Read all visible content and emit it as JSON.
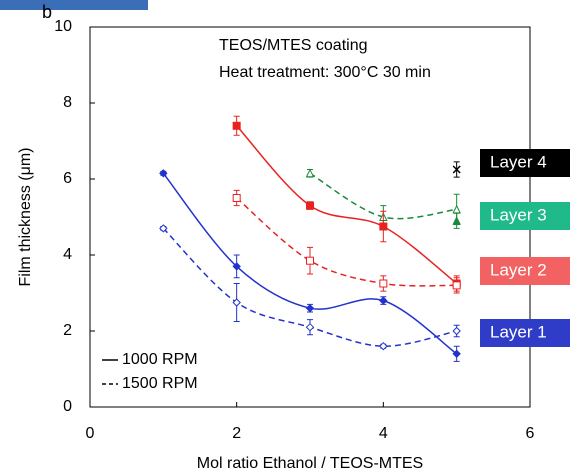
{
  "chart_data": {
    "type": "scatter",
    "panel_label": "b",
    "annotations": [
      "TEOS/MTES coating",
      "Heat treatment: 300°C  30 min"
    ],
    "x_label": "Mol ratio Ethanol / TEOS-MTES",
    "y_label": "Film thickness (μm)",
    "xlim": [
      0,
      6
    ],
    "xticks": [
      0,
      2,
      4,
      6
    ],
    "ylim": [
      0,
      10
    ],
    "yticks": [
      0,
      2,
      4,
      6,
      8,
      10
    ],
    "line_styles": [
      {
        "label": "1000 RPM",
        "dash": false
      },
      {
        "label": "1500 RPM",
        "dash": true
      }
    ],
    "series": [
      {
        "name": "Layer 4",
        "color": "#000000",
        "label_color": "#000000",
        "marker": "x",
        "runs": [
          {
            "dash": false,
            "filled": true,
            "x": [
              5
            ],
            "values": [
              6.25
            ],
            "errors": [
              0.2
            ]
          }
        ]
      },
      {
        "name": "Layer 3",
        "color": "#1a8a3a",
        "label_color": "#1fb98a",
        "marker": "triangle",
        "runs": [
          {
            "dash": false,
            "filled": true,
            "x": [
              5
            ],
            "values": [
              4.9
            ],
            "errors": [
              0.2
            ]
          },
          {
            "dash": true,
            "filled": false,
            "x": [
              3,
              4,
              5
            ],
            "values": [
              6.15,
              5.0,
              5.2
            ],
            "errors": [
              0.1,
              0.3,
              0.4
            ]
          }
        ]
      },
      {
        "name": "Layer 2",
        "color": "#e8231f",
        "label_color": "#f26262",
        "marker": "square",
        "runs": [
          {
            "dash": false,
            "filled": true,
            "x": [
              2,
              3,
              4,
              5
            ],
            "values": [
              7.4,
              5.3,
              4.75,
              3.25
            ],
            "errors": [
              0.25,
              0.1,
              0.4,
              0.2
            ]
          },
          {
            "dash": true,
            "filled": false,
            "x": [
              2,
              3,
              4,
              5
            ],
            "values": [
              5.5,
              3.85,
              3.25,
              3.2
            ],
            "errors": [
              0.2,
              0.35,
              0.2,
              0.2
            ]
          }
        ]
      },
      {
        "name": "Layer 1",
        "color": "#2233cc",
        "label_color": "#2f3cc8",
        "marker": "diamond",
        "runs": [
          {
            "dash": false,
            "filled": true,
            "x": [
              1,
              2,
              3,
              4,
              5
            ],
            "values": [
              6.15,
              3.7,
              2.6,
              2.8,
              1.4
            ],
            "errors": [
              0.05,
              0.3,
              0.1,
              0.1,
              0.2
            ]
          },
          {
            "dash": true,
            "filled": false,
            "x": [
              1,
              2,
              3,
              4,
              5
            ],
            "values": [
              4.7,
              2.75,
              2.1,
              1.6,
              2.0
            ],
            "errors": [
              0.05,
              0.5,
              0.2,
              0.05,
              0.15
            ]
          }
        ]
      }
    ]
  }
}
